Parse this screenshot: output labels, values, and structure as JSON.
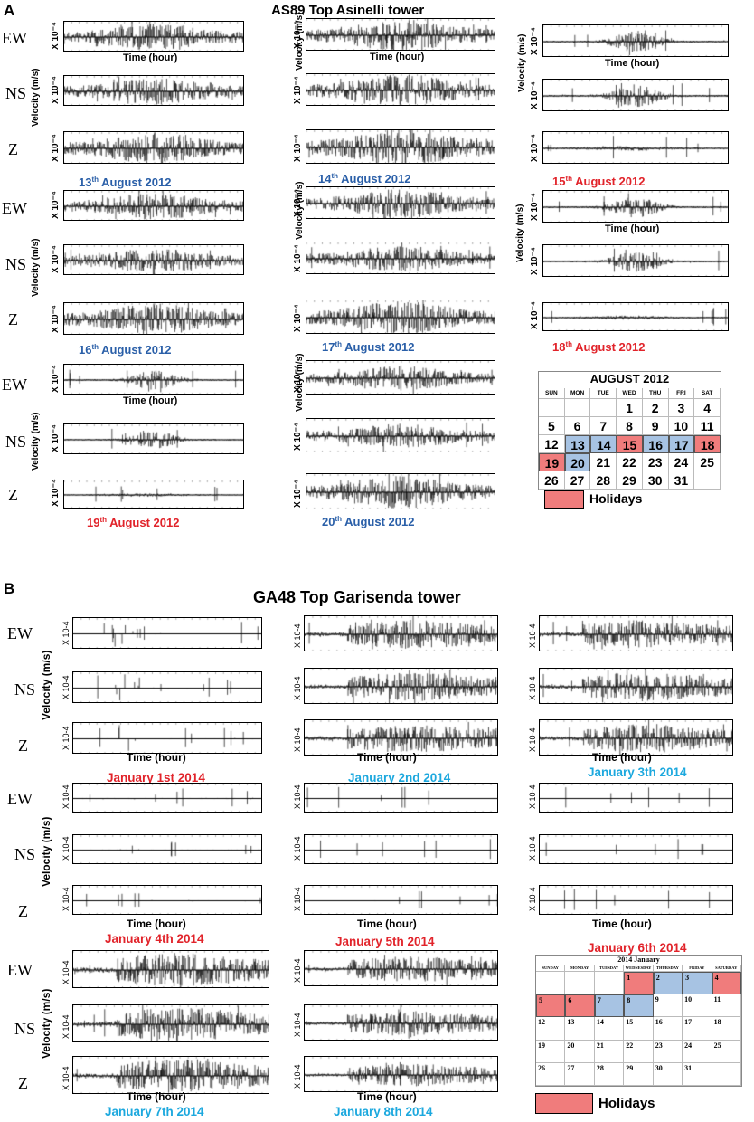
{
  "panel_a": {
    "letter": "A",
    "title": "AS89 Top Asinelli tower",
    "channels": [
      "EW",
      "NS",
      "Z"
    ],
    "velocity_label": "Velocity  (m/s)",
    "scale_label": "X 10⁻⁴",
    "time_label": "Time (hour)",
    "dates": [
      {
        "day": "13",
        "sup": "th",
        "rest": " August 2012",
        "color": "blue"
      },
      {
        "day": "14",
        "sup": "th",
        "rest": " August 2012",
        "color": "blue"
      },
      {
        "day": "15",
        "sup": "th",
        "rest": " August 2012",
        "color": "red"
      },
      {
        "day": "16",
        "sup": "th",
        "rest": " August 2012",
        "color": "blue"
      },
      {
        "day": "17",
        "sup": "th",
        "rest": " August 2012",
        "color": "blue"
      },
      {
        "day": "18",
        "sup": "th",
        "rest": " August 2012",
        "color": "red"
      },
      {
        "day": "19",
        "sup": "th",
        "rest": " August 2012",
        "color": "red"
      },
      {
        "day": "20",
        "sup": "th",
        "rest": " August 2012",
        "color": "blue"
      }
    ],
    "calendar": {
      "title": "AUGUST  2012",
      "weekdays": [
        "SUN",
        "MON",
        "TUE",
        "WED",
        "THU",
        "FRI",
        "SAT"
      ],
      "weeks": [
        [
          "",
          "",
          "",
          "1",
          "2",
          "3",
          "4"
        ],
        [
          "5",
          "6",
          "7",
          "8",
          "9",
          "10",
          "11"
        ],
        [
          "12",
          "13",
          "14",
          "15",
          "16",
          "17",
          "18"
        ],
        [
          "19",
          "20",
          "21",
          "22",
          "23",
          "24",
          "25"
        ],
        [
          "26",
          "27",
          "28",
          "29",
          "30",
          "31",
          ""
        ]
      ],
      "holidays": [
        "15",
        "18",
        "19"
      ],
      "workdays": [
        "13",
        "14",
        "16",
        "17",
        "20"
      ]
    },
    "legend": "Holidays"
  },
  "panel_b": {
    "letter": "B",
    "title": "GA48 Top Garisenda tower",
    "channels": [
      "EW",
      "NS",
      "Z"
    ],
    "velocity_label": "Velocity  (m/s)",
    "scale_label": "X 10-4",
    "time_label": "Time (hour)",
    "dates": [
      {
        "text": "January 1st 2014",
        "color": "red"
      },
      {
        "text": "January 2nd 2014",
        "color": "cyan"
      },
      {
        "text": "January 3th 2014",
        "color": "cyan"
      },
      {
        "text": "January 4th 2014",
        "color": "red"
      },
      {
        "text": "January 5th 2014",
        "color": "red"
      },
      {
        "text": "January 6th 2014",
        "color": "red"
      },
      {
        "text": "January 7th 2014",
        "color": "cyan"
      },
      {
        "text": "January 8th 2014",
        "color": "cyan"
      }
    ],
    "calendar": {
      "title": "2014 January",
      "weekdays": [
        "SUNDAY",
        "MONDAY",
        "TUESDAY",
        "WEDNESDAY",
        "THURSDAY",
        "FRIDAY",
        "SATURDAY"
      ],
      "weeks": [
        [
          "",
          "",
          "",
          "1",
          "2",
          "3",
          "4"
        ],
        [
          "5",
          "6",
          "7",
          "8",
          "9",
          "10",
          "11"
        ],
        [
          "12",
          "13",
          "14",
          "15",
          "16",
          "17",
          "18"
        ],
        [
          "19",
          "20",
          "21",
          "22",
          "23",
          "24",
          "25"
        ],
        [
          "26",
          "27",
          "28",
          "29",
          "30",
          "31",
          ""
        ]
      ],
      "holidays": [
        "1",
        "4",
        "5",
        "6"
      ],
      "workdays": [
        "2",
        "3",
        "7",
        "8"
      ]
    },
    "legend": "Holidays"
  },
  "colors": {
    "blue": "#2a5fa8",
    "red": "#e1232a",
    "cyan": "#1ca8de",
    "holiday_fill": "#f07c7c",
    "workday_fill": "#a7c3e3"
  }
}
